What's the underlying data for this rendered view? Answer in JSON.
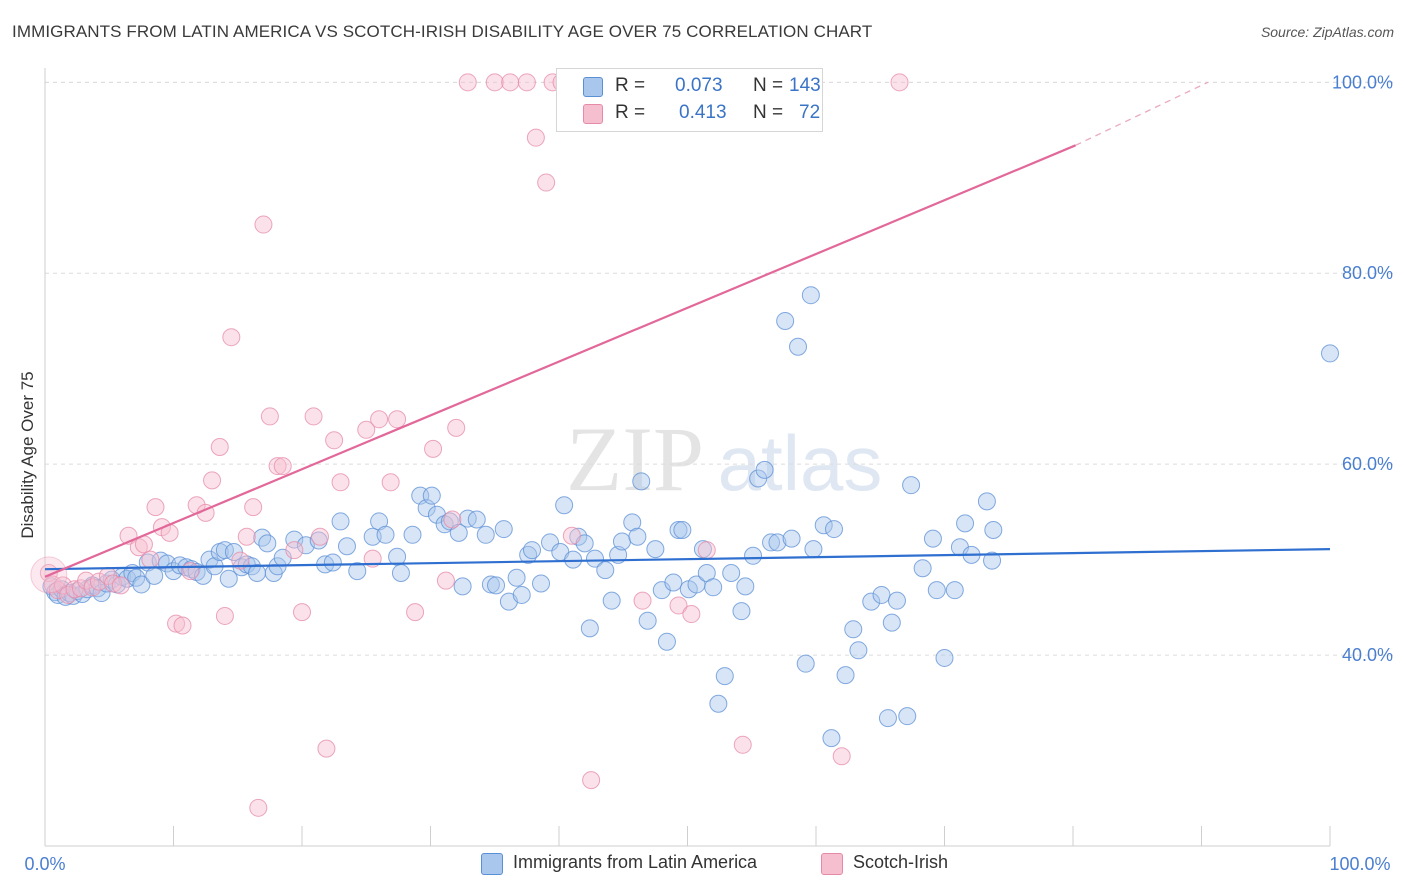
{
  "title": "IMMIGRANTS FROM LATIN AMERICA VS SCOTCH-IRISH DISABILITY AGE OVER 75 CORRELATION CHART",
  "source": "Source: ZipAtlas.com",
  "watermark": {
    "zip": "ZIP",
    "atlas": "atlas"
  },
  "colors": {
    "blue_fill": "#a9c6ec",
    "blue_stroke": "#5b8fd6",
    "blue_line": "#2f6fd0",
    "pink_fill": "#f6bfd0",
    "pink_stroke": "#e58aa8",
    "pink_line": "#e2689a",
    "axis_text": "#4a7fd0",
    "grid": "#dcdcdc"
  },
  "legend": {
    "r_label": "R =",
    "n_label": "N =",
    "blue": {
      "r": "0.073",
      "n": "143"
    },
    "pink": {
      "r": "0.413",
      "n": "72"
    }
  },
  "chart_data": {
    "type": "scatter",
    "xlabel": "",
    "ylabel": "Disability Age Over 75",
    "x_tick_labels": [
      "0.0%",
      "100.0%"
    ],
    "y_tick_labels": [
      "40.0%",
      "60.0%",
      "80.0%",
      "100.0%"
    ],
    "x_range": [
      0,
      100
    ],
    "y_range": [
      20,
      101.5
    ],
    "grid": "horizontal dashed",
    "legend_position": "top-center",
    "series": [
      {
        "name": "Immigrants from Latin America",
        "color": "#a9c6ec",
        "trend": {
          "x0": 0,
          "y0": 49.0,
          "x1": 100,
          "y1": 51.1
        },
        "points": [
          [
            0.5,
            47.2
          ],
          [
            0.8,
            46.6
          ],
          [
            1,
            46.3
          ],
          [
            1.3,
            46.9
          ],
          [
            1.6,
            46.1
          ],
          [
            1.9,
            46.5
          ],
          [
            2.2,
            46.2
          ],
          [
            2.5,
            46.7
          ],
          [
            2.9,
            46.4
          ],
          [
            3.3,
            46.9
          ],
          [
            3.7,
            47.3
          ],
          [
            4.1,
            47.0
          ],
          [
            4.4,
            46.5
          ],
          [
            4.8,
            47.5
          ],
          [
            5.2,
            47.9
          ],
          [
            5.6,
            47.4
          ],
          [
            6,
            48.2
          ],
          [
            6.4,
            48.0
          ],
          [
            6.8,
            48.6
          ],
          [
            7.1,
            48.1
          ],
          [
            7.5,
            47.4
          ],
          [
            8,
            49.7
          ],
          [
            8.5,
            48.3
          ],
          [
            9,
            49.9
          ],
          [
            9.5,
            49.6
          ],
          [
            10,
            48.8
          ],
          [
            10.5,
            49.4
          ],
          [
            11,
            49.2
          ],
          [
            11.4,
            49.0
          ],
          [
            11.8,
            48.7
          ],
          [
            12.3,
            48.3
          ],
          [
            12.8,
            50.0
          ],
          [
            13.2,
            49.3
          ],
          [
            13.6,
            50.8
          ],
          [
            14,
            51.0
          ],
          [
            14.3,
            48.0
          ],
          [
            14.7,
            50.8
          ],
          [
            15.3,
            49.2
          ],
          [
            15.7,
            49.5
          ],
          [
            16.1,
            49.3
          ],
          [
            16.5,
            48.6
          ],
          [
            16.9,
            52.3
          ],
          [
            17.3,
            51.7
          ],
          [
            17.8,
            48.6
          ],
          [
            18.1,
            49.3
          ],
          [
            18.5,
            50.2
          ],
          [
            19.4,
            52.1
          ],
          [
            20.3,
            51.5
          ],
          [
            21.3,
            52.0
          ],
          [
            21.8,
            49.5
          ],
          [
            22.4,
            49.7
          ],
          [
            23,
            54.0
          ],
          [
            23.5,
            51.4
          ],
          [
            24.3,
            48.8
          ],
          [
            25.5,
            52.4
          ],
          [
            26,
            54.0
          ],
          [
            26.5,
            52.6
          ],
          [
            27.4,
            50.3
          ],
          [
            27.7,
            48.6
          ],
          [
            28.6,
            52.6
          ],
          [
            29.2,
            56.7
          ],
          [
            29.7,
            55.4
          ],
          [
            30.1,
            56.7
          ],
          [
            30.5,
            54.7
          ],
          [
            31.1,
            53.7
          ],
          [
            31.5,
            54.0
          ],
          [
            32.2,
            52.8
          ],
          [
            32.5,
            47.2
          ],
          [
            32.9,
            54.3
          ],
          [
            33.6,
            54.2
          ],
          [
            34.3,
            52.6
          ],
          [
            34.7,
            47.4
          ],
          [
            35.1,
            47.3
          ],
          [
            35.7,
            53.2
          ],
          [
            36.1,
            45.6
          ],
          [
            36.7,
            48.1
          ],
          [
            37.1,
            46.3
          ],
          [
            37.6,
            50.5
          ],
          [
            37.9,
            51.0
          ],
          [
            38.6,
            47.5
          ],
          [
            39.3,
            51.8
          ],
          [
            40.1,
            50.8
          ],
          [
            40.4,
            55.7
          ],
          [
            41.1,
            50.0
          ],
          [
            41.5,
            52.4
          ],
          [
            42,
            51.7
          ],
          [
            42.4,
            42.8
          ],
          [
            42.8,
            50.1
          ],
          [
            43.6,
            48.9
          ],
          [
            44.1,
            45.7
          ],
          [
            44.6,
            50.5
          ],
          [
            44.9,
            51.9
          ],
          [
            45.7,
            53.9
          ],
          [
            46.1,
            52.4
          ],
          [
            46.4,
            58.2
          ],
          [
            46.9,
            43.6
          ],
          [
            47.5,
            51.1
          ],
          [
            48,
            46.8
          ],
          [
            48.4,
            41.4
          ],
          [
            48.9,
            47.6
          ],
          [
            49.3,
            53.1
          ],
          [
            49.6,
            53.1
          ],
          [
            50.1,
            46.9
          ],
          [
            50.7,
            47.4
          ],
          [
            51.2,
            51.1
          ],
          [
            51.5,
            48.6
          ],
          [
            52,
            47.1
          ],
          [
            52.4,
            34.9
          ],
          [
            52.9,
            37.8
          ],
          [
            53.4,
            48.6
          ],
          [
            54.2,
            44.6
          ],
          [
            54.5,
            47.2
          ],
          [
            55.1,
            50.4
          ],
          [
            55.5,
            58.5
          ],
          [
            56,
            59.4
          ],
          [
            56.5,
            51.8
          ],
          [
            57,
            51.8
          ],
          [
            57.6,
            75.0
          ],
          [
            58.1,
            52.2
          ],
          [
            58.6,
            72.3
          ],
          [
            59.2,
            39.1
          ],
          [
            59.6,
            77.7
          ],
          [
            59.8,
            51.1
          ],
          [
            60.6,
            53.6
          ],
          [
            61.2,
            31.3
          ],
          [
            61.4,
            53.2
          ],
          [
            62.3,
            37.9
          ],
          [
            62.9,
            42.7
          ],
          [
            63.3,
            40.5
          ],
          [
            64.3,
            45.6
          ],
          [
            65.1,
            46.3
          ],
          [
            65.6,
            33.4
          ],
          [
            65.9,
            43.4
          ],
          [
            66.3,
            45.7
          ],
          [
            67.1,
            33.6
          ],
          [
            67.4,
            57.8
          ],
          [
            68.3,
            49.1
          ],
          [
            69.1,
            52.2
          ],
          [
            69.4,
            46.8
          ],
          [
            70,
            39.7
          ],
          [
            70.8,
            46.8
          ],
          [
            71.2,
            51.3
          ],
          [
            71.6,
            53.8
          ],
          [
            72.1,
            50.5
          ],
          [
            73.3,
            56.1
          ],
          [
            73.7,
            49.9
          ],
          [
            73.8,
            53.1
          ],
          [
            100,
            71.6
          ]
        ]
      },
      {
        "name": "Scotch-Irish",
        "color": "#f6bfd0",
        "trend": {
          "x0": 0,
          "y0": 48.2,
          "x1": 80.2,
          "y1": 93.4,
          "dashed_to": {
            "x": 90.5,
            "y": 100.0
          }
        },
        "points": [
          [
            0.3,
            48.6
          ],
          [
            0.6,
            47.4
          ],
          [
            1,
            46.8
          ],
          [
            1.4,
            47.3
          ],
          [
            1.8,
            46.3
          ],
          [
            2.3,
            46.9
          ],
          [
            2.8,
            47.0
          ],
          [
            3.2,
            47.8
          ],
          [
            3.7,
            47.1
          ],
          [
            4.2,
            47.7
          ],
          [
            4.9,
            48.3
          ],
          [
            5.3,
            47.5
          ],
          [
            5.9,
            47.3
          ],
          [
            6.5,
            52.5
          ],
          [
            7.3,
            51.3
          ],
          [
            7.7,
            51.6
          ],
          [
            8.2,
            50.0
          ],
          [
            8.6,
            55.5
          ],
          [
            9.1,
            53.4
          ],
          [
            9.7,
            52.8
          ],
          [
            10.2,
            43.3
          ],
          [
            10.7,
            43.1
          ],
          [
            11.3,
            48.8
          ],
          [
            11.8,
            55.7
          ],
          [
            12.5,
            54.9
          ],
          [
            13,
            58.3
          ],
          [
            13.6,
            61.8
          ],
          [
            14,
            44.1
          ],
          [
            14.5,
            73.3
          ],
          [
            15.2,
            49.9
          ],
          [
            15.7,
            52.4
          ],
          [
            16.2,
            55.5
          ],
          [
            16.6,
            24.0
          ],
          [
            17,
            85.1
          ],
          [
            17.5,
            65.0
          ],
          [
            18.1,
            59.8
          ],
          [
            18.5,
            59.8
          ],
          [
            19.4,
            51.0
          ],
          [
            20,
            44.5
          ],
          [
            20.9,
            65.0
          ],
          [
            21.4,
            52.4
          ],
          [
            21.9,
            30.2
          ],
          [
            22.5,
            62.5
          ],
          [
            23,
            58.1
          ],
          [
            25,
            63.6
          ],
          [
            25.5,
            50.1
          ],
          [
            26,
            64.7
          ],
          [
            26.9,
            58.1
          ],
          [
            27.4,
            64.7
          ],
          [
            28.8,
            44.5
          ],
          [
            30.2,
            61.6
          ],
          [
            31.2,
            47.8
          ],
          [
            31.7,
            54.2
          ],
          [
            32,
            63.8
          ],
          [
            32.9,
            100.0
          ],
          [
            35,
            100.0
          ],
          [
            36.2,
            100.0
          ],
          [
            37.5,
            100.0
          ],
          [
            38.2,
            94.2
          ],
          [
            39,
            89.5
          ],
          [
            39.5,
            100.0
          ],
          [
            40.2,
            100.0
          ],
          [
            41,
            52.5
          ],
          [
            42.5,
            26.9
          ],
          [
            43.6,
            100.0
          ],
          [
            46.5,
            45.7
          ],
          [
            49.3,
            45.2
          ],
          [
            50.3,
            44.3
          ],
          [
            51.5,
            51.0
          ],
          [
            54.3,
            30.6
          ],
          [
            62,
            29.4
          ],
          [
            66.5,
            100.0
          ]
        ]
      }
    ]
  },
  "bottom_legend": [
    {
      "label": "Immigrants from Latin America"
    },
    {
      "label": "Scotch-Irish"
    }
  ]
}
